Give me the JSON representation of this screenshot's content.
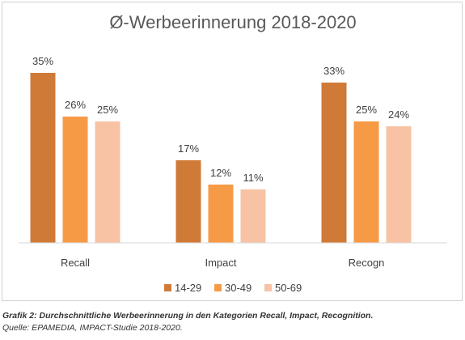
{
  "chart_data": {
    "type": "bar",
    "title": "Ø-Werbeerinnerung 2018-2020",
    "categories": [
      "Recall",
      "Impact",
      "Recogn"
    ],
    "series": [
      {
        "name": "14-29",
        "values": [
          35,
          17,
          33
        ],
        "labels": [
          "35%",
          "17%",
          "33%"
        ],
        "color": "#d07a38"
      },
      {
        "name": "30-49",
        "values": [
          26,
          12,
          25
        ],
        "labels": [
          "26%",
          "12%",
          "25%"
        ],
        "color": "#f79a46"
      },
      {
        "name": "50-69",
        "values": [
          25,
          11,
          24
        ],
        "labels": [
          "25%",
          "11%",
          "24%"
        ],
        "color": "#f8c3a4"
      }
    ],
    "unit": "%",
    "ylim": [
      0,
      40
    ],
    "grid": false,
    "legend_position": "bottom"
  },
  "caption": {
    "line1": "Grafik 2: Durchschnittliche Werbeerinnerung in den Kategorien Recall, Impact, Recognition.",
    "line2": "Quelle: EPAMEDIA, IMPACT-Studie 2018-2020."
  }
}
